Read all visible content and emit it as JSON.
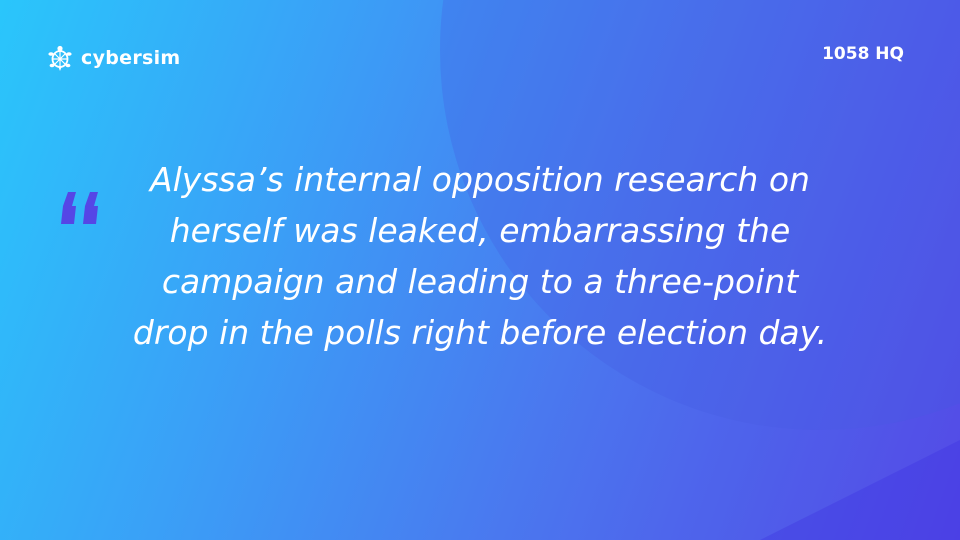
{
  "brand": {
    "name": "cybersim",
    "icon": "turtle-logo-icon"
  },
  "header": {
    "hq_label": "1058 HQ"
  },
  "quote": {
    "icon": "opening-quote-icon",
    "text": "Alyssa’s internal opposition research on herself was leaked, embarrassing the campaign and leading to a three-point drop in the polls right before election day."
  },
  "colors": {
    "gradient_start": "#2ac6fb",
    "gradient_mid": "#4a78ef",
    "gradient_end": "#5546e6",
    "quote_mark": "#5546e6",
    "text": "#ffffff"
  }
}
